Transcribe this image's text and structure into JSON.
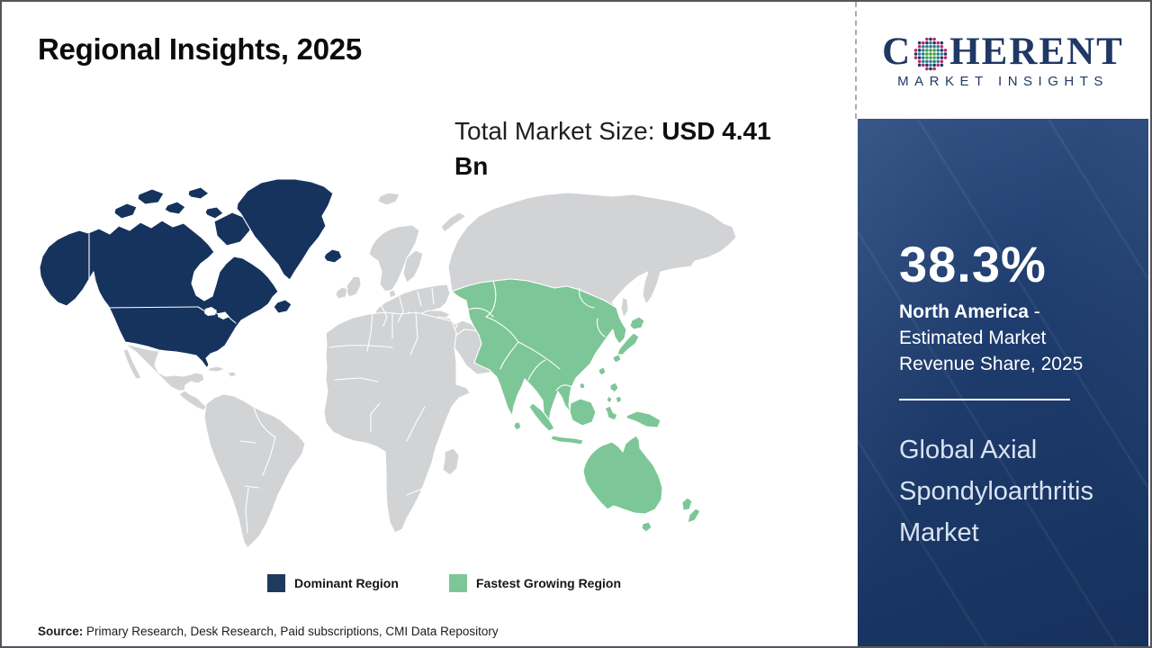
{
  "title": "Regional Insights, 2025",
  "market_size": {
    "label": "Total Market Size: ",
    "value": "USD 4.41 Bn"
  },
  "map": {
    "colors": {
      "dominant": "#16335E",
      "growing": "#7DC697",
      "other": "#D2D3D5",
      "border": "#FFFFFF"
    }
  },
  "legend": {
    "dominant": {
      "label": "Dominant Region",
      "color": "#1F3A5F"
    },
    "growing": {
      "label": "Fastest Growing Region",
      "color": "#7DC697"
    }
  },
  "panel": {
    "share_value": "38.3%",
    "share_region": "North America",
    "share_rest": " - Estimated Market Revenue Share, 2025",
    "market_name": "Global Axial Spondyloarthritis Market",
    "colors": {
      "bg_top": "#27497E",
      "bg_mid": "#1D3B6C",
      "bg_bottom": "#16315C",
      "text": "#FFFFFF",
      "subtext": "#D9E3F1"
    }
  },
  "logo": {
    "word_start": "C",
    "word_end": "HERENT",
    "subtitle": "MARKET INSIGHTS",
    "color": "#1F3864",
    "globe_colors": {
      "inner": "#44A147",
      "mid": "#2B7D8F",
      "outer1": "#C2256E",
      "outer2": "#1F3864"
    }
  },
  "source": {
    "label": "Source:",
    "text": " Primary Research, Desk Research, Paid subscriptions, CMI Data Repository"
  }
}
